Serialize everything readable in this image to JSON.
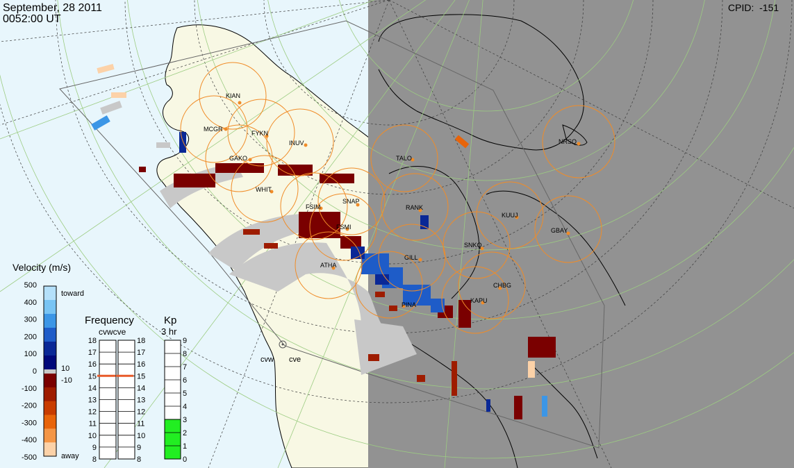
{
  "header": {
    "date": "September, 28 2011",
    "time": "0052:00 UT",
    "cpid_label": "CPID:",
    "cpid_value": "-151"
  },
  "colors": {
    "ocean": "#e8f6fc",
    "land": "#f8f8e4",
    "night": "#929292",
    "station_circle": "#f08c28",
    "station_dot": "#f08c28",
    "gridline": "#9ccc82",
    "ground_scatter": "#c8c8c8",
    "kp_fill": "#22ee22",
    "frequency_marker": "#e85a28"
  },
  "stations": [
    {
      "code": "KIAN"
    },
    {
      "code": "MCGR"
    },
    {
      "code": "FYKN"
    },
    {
      "code": "INUV"
    },
    {
      "code": "GAKO"
    },
    {
      "code": "WHIT"
    },
    {
      "code": "FSIM"
    },
    {
      "code": "SNAP"
    },
    {
      "code": "FSMI"
    },
    {
      "code": "ATHA"
    },
    {
      "code": "GILL"
    },
    {
      "code": "RANK"
    },
    {
      "code": "TALO"
    },
    {
      "code": "NRSQ"
    },
    {
      "code": "KUUJ"
    },
    {
      "code": "GBAY"
    },
    {
      "code": "SNKQ"
    },
    {
      "code": "CHBG"
    },
    {
      "code": "KAPU"
    },
    {
      "code": "PINA"
    }
  ],
  "radars": [
    {
      "code": "cvw"
    },
    {
      "code": "cve"
    }
  ],
  "velocity_scale": {
    "title": "Velocity (m/s)",
    "ticks": [
      "500",
      "400",
      "300",
      "200",
      "100",
      "0",
      "-100",
      "-200",
      "-300",
      "-400",
      "-500"
    ],
    "toward_label": "toward",
    "away_label": "away",
    "gs_upper": "10",
    "gs_lower": "-10",
    "colors_top_to_bottom": [
      "#b4e0fa",
      "#78c4f4",
      "#3c96e6",
      "#1e5cc8",
      "#0a2896",
      "#00087a",
      "#7a0000",
      "#9e1c00",
      "#c83c00",
      "#e8640a",
      "#f49646",
      "#fcd2a8"
    ]
  },
  "frequency": {
    "title": "Frequency",
    "columns": "cvwcve",
    "ticks": [
      "18",
      "17",
      "16",
      "15",
      "14",
      "13",
      "12",
      "11",
      "10",
      "9",
      "8"
    ],
    "cvw_mhz": 15,
    "cve_mhz": 15
  },
  "kp": {
    "title": "Kp",
    "subtitle": "3 hr",
    "ticks": [
      "9",
      "8",
      "7",
      "6",
      "5",
      "4",
      "3",
      "2",
      "1",
      "0"
    ],
    "value": 3
  }
}
